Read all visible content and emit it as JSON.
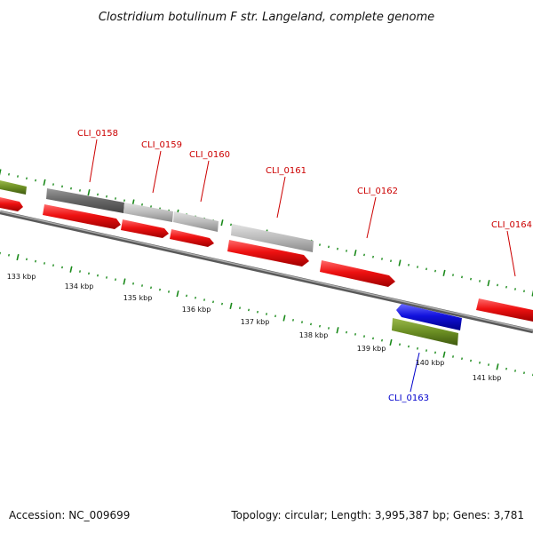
{
  "title": "Clostridium botulinum F str. Langeland, complete genome",
  "footer": {
    "accession": "Accession: NC_009699",
    "summary": "Topology: circular; Length: 3,995,387 bp; Genes: 3,781"
  },
  "colors": {
    "cds": "#ee1111",
    "cds_reverse": "#1111dd",
    "gene_bar_dark": "#666666",
    "gene_bar_light": "#bbbbbb",
    "gene_bar_green": "#6b8e23",
    "tick": "#1a8a1a",
    "label_red": "#cc0000",
    "label_blue": "#0000cc",
    "backbone": "#888888"
  },
  "labels": [
    {
      "text": "CLI_0158",
      "color": "red"
    },
    {
      "text": "CLI_0159",
      "color": "red"
    },
    {
      "text": "CLI_0160",
      "color": "red"
    },
    {
      "text": "CLI_0161",
      "color": "red"
    },
    {
      "text": "CLI_0162",
      "color": "red"
    },
    {
      "text": "CLI_0164",
      "color": "red"
    },
    {
      "text": "CLI_0163",
      "color": "blue"
    }
  ],
  "kbp_labels": [
    "133 kbp",
    "134 kbp",
    "135 kbp",
    "136 kbp",
    "137 kbp",
    "138 kbp",
    "139 kbp",
    "140 kbp",
    "141 kbp"
  ]
}
